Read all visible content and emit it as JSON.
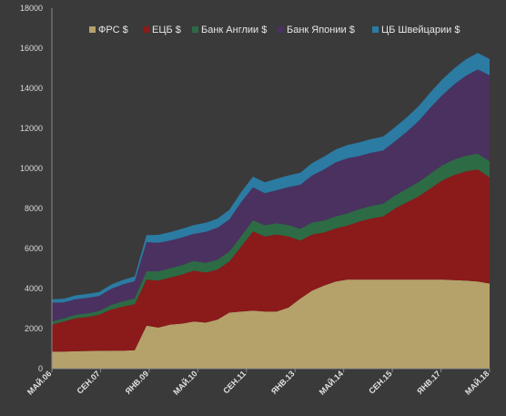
{
  "chart_data": {
    "type": "area",
    "stacked": true,
    "ylim": [
      0,
      18000
    ],
    "y_ticks": [
      0,
      2000,
      4000,
      6000,
      8000,
      10000,
      12000,
      14000,
      16000,
      18000
    ],
    "y_tick_labels": [
      "0",
      "2000",
      "4000",
      "6000",
      "8000",
      "10000",
      "12000",
      "14000",
      "16000",
      "18000"
    ],
    "x_tick_labels": [
      "МАЙ.06",
      "СЕН.07",
      "ЯНВ.09",
      "МАЙ.10",
      "СЕН.11",
      "ЯНВ.13",
      "МАЙ.14",
      "СЕН.15",
      "ЯНВ.17",
      "МАЙ.18"
    ],
    "x": [
      "МАЙ.06",
      "СЕН.06",
      "ЯНВ.07",
      "МАЙ.07",
      "СЕН.07",
      "ЯНВ.08",
      "МАЙ.08",
      "СЕН.08",
      "ЯНВ.09",
      "МАЙ.09",
      "СЕН.09",
      "ЯНВ.10",
      "МАЙ.10",
      "СЕН.10",
      "ЯНВ.11",
      "МАЙ.11",
      "СЕН.11",
      "ЯНВ.12",
      "МАЙ.12",
      "СЕН.12",
      "ЯНВ.13",
      "МАЙ.13",
      "СЕН.13",
      "ЯНВ.14",
      "МАЙ.14",
      "СЕН.14",
      "ЯНВ.15",
      "МАЙ.15",
      "СЕН.15",
      "ЯНВ.16",
      "МАЙ.16",
      "СЕН.16",
      "ЯНВ.17",
      "МАЙ.17",
      "СЕН.17",
      "ЯНВ.18",
      "МАЙ.18",
      "СЕН.18"
    ],
    "legend_position": "top-right",
    "grid": false,
    "series": [
      {
        "name": "ФРС  $",
        "color": "#b5a26a",
        "values": [
          850,
          850,
          870,
          880,
          890,
          900,
          900,
          920,
          2150,
          2050,
          2200,
          2250,
          2350,
          2300,
          2450,
          2800,
          2850,
          2900,
          2850,
          2850,
          3050,
          3500,
          3900,
          4150,
          4350,
          4450,
          4450,
          4450,
          4450,
          4450,
          4450,
          4450,
          4450,
          4450,
          4420,
          4400,
          4350,
          4250
        ]
      },
      {
        "name": "ЕЦБ $",
        "color": "#8b1a1a",
        "values": [
          1350,
          1500,
          1650,
          1700,
          1800,
          2050,
          2200,
          2300,
          2300,
          2350,
          2350,
          2450,
          2550,
          2500,
          2500,
          2550,
          3250,
          3950,
          3750,
          3850,
          3550,
          2900,
          2800,
          2650,
          2650,
          2700,
          2900,
          3050,
          3150,
          3550,
          3850,
          4150,
          4550,
          4950,
          5250,
          5450,
          5600,
          5300
        ]
      },
      {
        "name": "Банк Англии $",
        "color": "#2d6b45",
        "values": [
          150,
          160,
          170,
          180,
          190,
          230,
          260,
          290,
          420,
          460,
          470,
          470,
          480,
          480,
          490,
          500,
          520,
          560,
          560,
          560,
          570,
          580,
          600,
          600,
          600,
          610,
          620,
          630,
          640,
          650,
          680,
          720,
          740,
          760,
          770,
          780,
          790,
          800
        ]
      },
      {
        "name": "Банк Японии $",
        "color": "#4a3160",
        "values": [
          950,
          800,
          780,
          770,
          750,
          800,
          850,
          860,
          1450,
          1420,
          1380,
          1380,
          1350,
          1550,
          1600,
          1600,
          1700,
          1650,
          1600,
          1650,
          1900,
          2200,
          2350,
          2550,
          2700,
          2750,
          2650,
          2650,
          2650,
          2700,
          2850,
          3050,
          3300,
          3500,
          3750,
          4000,
          4200,
          4300
        ]
      },
      {
        "name": "ЦБ Швейцарии $",
        "color": "#2b7ba3",
        "values": [
          170,
          180,
          190,
          200,
          200,
          210,
          220,
          230,
          350,
          400,
          420,
          430,
          440,
          450,
          450,
          480,
          500,
          530,
          550,
          570,
          580,
          600,
          620,
          640,
          650,
          660,
          680,
          690,
          700,
          710,
          720,
          740,
          760,
          780,
          800,
          820,
          830,
          820
        ]
      }
    ]
  }
}
